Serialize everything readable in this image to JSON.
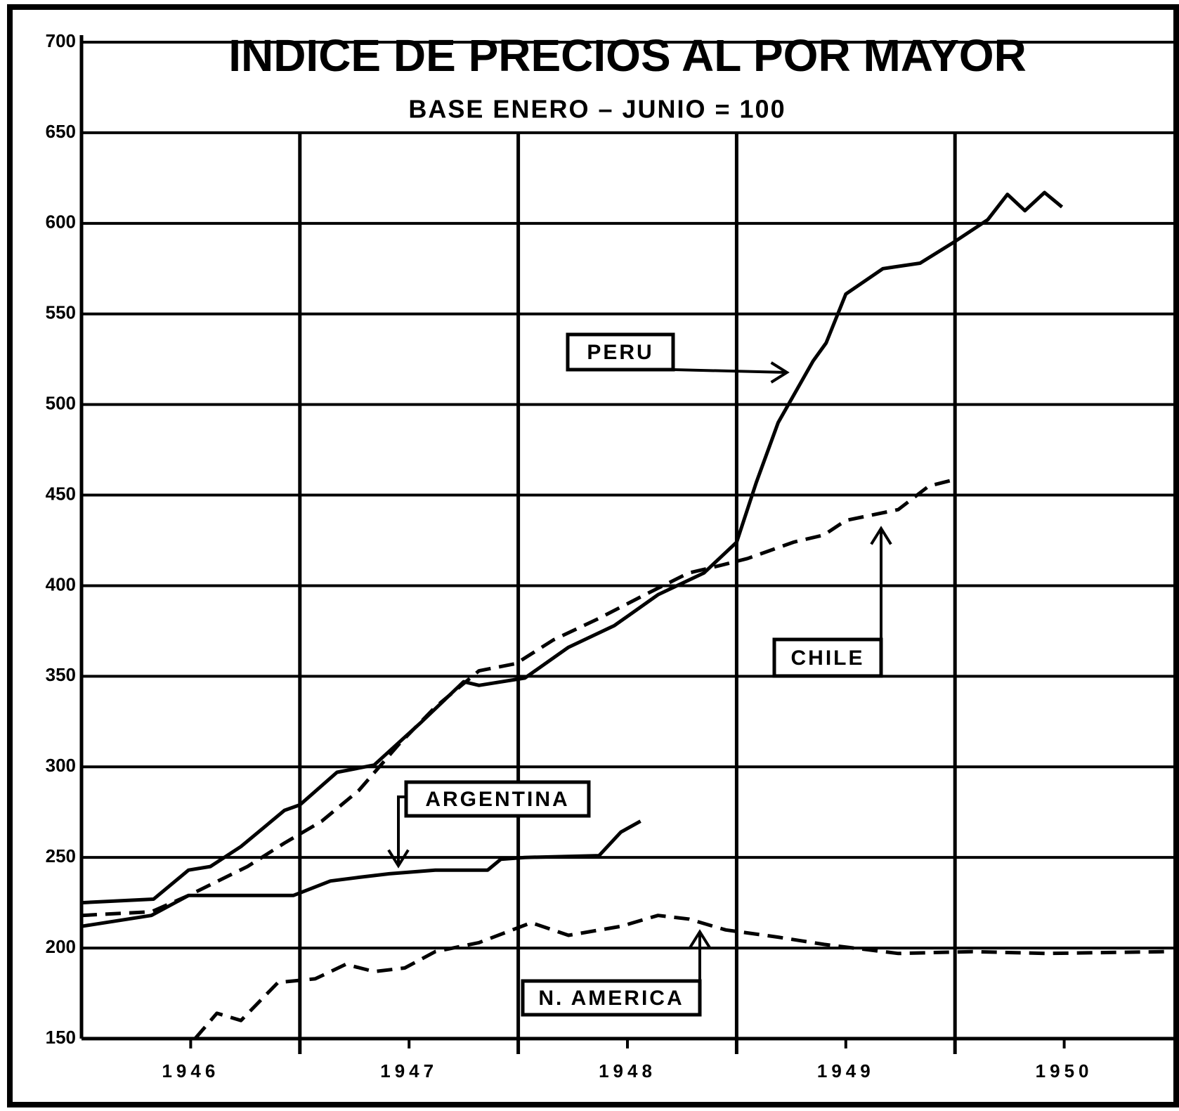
{
  "chart_data": {
    "type": "line",
    "title": "INDICE DE PRECIOS AL POR MAYOR",
    "subtitle": "BASE ENERO – JUNIO = 100",
    "xlim": [
      1946,
      1951
    ],
    "xticks": [
      {
        "value": 1946.5,
        "label": "1946"
      },
      {
        "value": 1947.5,
        "label": "1947"
      },
      {
        "value": 1948.5,
        "label": "1948"
      },
      {
        "value": 1949.5,
        "label": "1949"
      },
      {
        "value": 1950.5,
        "label": "1950"
      }
    ],
    "x_grid": [
      1947,
      1948,
      1949,
      1950
    ],
    "ylim": [
      150,
      700
    ],
    "yticks": [
      150,
      200,
      250,
      300,
      350,
      400,
      450,
      500,
      550,
      600,
      650,
      700
    ],
    "grid": true,
    "series": [
      {
        "name": "PERU",
        "color": "#000000",
        "style": "solid",
        "x": [
          1946.0,
          1946.33,
          1946.49,
          1946.59,
          1946.73,
          1946.93,
          1947.0,
          1947.17,
          1947.34,
          1947.55,
          1947.75,
          1947.82,
          1948.03,
          1948.23,
          1948.44,
          1948.64,
          1948.85,
          1949.0,
          1949.09,
          1949.19,
          1949.35,
          1949.41,
          1949.5,
          1949.67,
          1949.84,
          1950.0,
          1950.15,
          1950.24,
          1950.32,
          1950.41,
          1950.49
        ],
        "values": [
          225,
          227,
          243,
          245,
          256,
          276,
          279,
          297,
          301,
          324,
          347,
          345,
          349,
          366,
          378,
          395,
          407,
          424,
          457,
          490,
          524,
          534,
          561,
          575,
          578,
          590,
          602,
          616,
          607,
          617,
          609
        ]
      },
      {
        "name": "CHILE",
        "color": "#000000",
        "style": "dashed",
        "x": [
          1946.0,
          1946.32,
          1946.49,
          1946.76,
          1946.93,
          1947.1,
          1947.27,
          1947.45,
          1947.62,
          1947.82,
          1947.99,
          1948.16,
          1948.37,
          1948.58,
          1948.78,
          1948.92,
          1949.05,
          1949.26,
          1949.4,
          1949.5,
          1949.74,
          1949.88,
          1949.98
        ],
        "values": [
          218,
          220,
          229,
          245,
          258,
          270,
          287,
          312,
          333,
          353,
          357,
          370,
          382,
          395,
          407,
          411,
          415,
          424,
          428,
          436,
          442,
          455,
          458
        ]
      },
      {
        "name": "ARGENTINA",
        "color": "#000000",
        "style": "solid",
        "x": [
          1946.0,
          1946.32,
          1946.49,
          1946.97,
          1947.14,
          1947.27,
          1947.41,
          1947.62,
          1947.86,
          1947.92,
          1948.03,
          1948.37,
          1948.47,
          1948.56
        ],
        "values": [
          212,
          218,
          229,
          229,
          237,
          239,
          241,
          243,
          243,
          249,
          250,
          251,
          264,
          270
        ]
      },
      {
        "name": "N. AMERICA",
        "color": "#000000",
        "style": "dashed",
        "x": [
          1946.52,
          1946.62,
          1946.73,
          1946.9,
          1947.07,
          1947.21,
          1947.34,
          1947.48,
          1947.62,
          1947.82,
          1948.06,
          1948.23,
          1948.47,
          1948.64,
          1948.78,
          1948.95,
          1949.19,
          1949.4,
          1949.74,
          1950.08,
          1950.42,
          1950.97
        ],
        "values": [
          150,
          164,
          160,
          181,
          183,
          191,
          187,
          189,
          198,
          203,
          214,
          207,
          212,
          218,
          216,
          210,
          206,
          202,
          197,
          198,
          197,
          198
        ]
      }
    ]
  }
}
